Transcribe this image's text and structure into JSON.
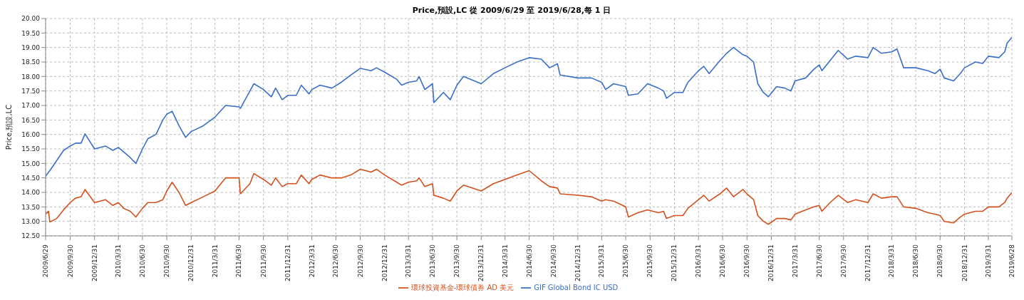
{
  "chart_data": {
    "type": "line",
    "title": "Price,預設,LC 從 2009/6/29 至 2019/6/28,每 1 日",
    "ylabel": "Price,預設,LC",
    "x": [
      "2009-06-29",
      "2009-07-10",
      "2009-07-15",
      "2009-08-10",
      "2009-09-05",
      "2009-09-30",
      "2009-10-20",
      "2009-11-10",
      "2009-11-25",
      "2009-12-31",
      "2010-02-10",
      "2010-03-10",
      "2010-03-31",
      "2010-04-20",
      "2010-05-15",
      "2010-06-05",
      "2010-06-30",
      "2010-07-20",
      "2010-08-20",
      "2010-09-15",
      "2010-09-30",
      "2010-10-20",
      "2010-11-15",
      "2010-12-10",
      "2010-12-31",
      "2011-02-15",
      "2011-03-31",
      "2011-05-10",
      "2011-06-30",
      "2011-07-05",
      "2011-08-10",
      "2011-08-25",
      "2011-09-30",
      "2011-10-30",
      "2011-11-15",
      "2011-12-10",
      "2011-12-31",
      "2012-02-01",
      "2012-02-20",
      "2012-03-20",
      "2012-03-31",
      "2012-05-01",
      "2012-06-15",
      "2012-07-20",
      "2012-08-25",
      "2012-09-30",
      "2012-11-10",
      "2012-11-30",
      "2012-12-31",
      "2013-02-15",
      "2013-03-05",
      "2013-03-31",
      "2013-05-01",
      "2013-05-10",
      "2013-06-01",
      "2013-06-30",
      "2013-07-05",
      "2013-08-10",
      "2013-09-05",
      "2013-09-30",
      "2013-10-25",
      "2013-12-31",
      "2014-02-15",
      "2014-03-31",
      "2014-05-15",
      "2014-06-30",
      "2014-08-15",
      "2014-09-15",
      "2014-10-15",
      "2014-10-25",
      "2014-12-31",
      "2015-02-20",
      "2015-03-31",
      "2015-04-15",
      "2015-05-15",
      "2015-06-30",
      "2015-07-10",
      "2015-08-15",
      "2015-09-20",
      "2015-10-31",
      "2015-11-20",
      "2015-12-01",
      "2015-12-31",
      "2016-02-01",
      "2016-02-20",
      "2016-03-31",
      "2016-04-20",
      "2016-05-10",
      "2016-06-20",
      "2016-07-15",
      "2016-08-10",
      "2016-09-15",
      "2016-09-30",
      "2016-10-25",
      "2016-11-10",
      "2016-12-01",
      "2016-12-20",
      "2017-01-20",
      "2017-02-20",
      "2017-03-15",
      "2017-03-31",
      "2017-05-10",
      "2017-06-10",
      "2017-06-30",
      "2017-07-10",
      "2017-08-10",
      "2017-09-10",
      "2017-10-15",
      "2017-11-15",
      "2017-12-31",
      "2018-01-20",
      "2018-02-20",
      "2018-03-31",
      "2018-04-20",
      "2018-05-15",
      "2018-06-30",
      "2018-08-15",
      "2018-09-10",
      "2018-09-30",
      "2018-10-15",
      "2018-11-20",
      "2018-12-15",
      "2018-12-31",
      "2019-02-10",
      "2019-03-10",
      "2019-03-31",
      "2019-05-10",
      "2019-06-01",
      "2019-06-10",
      "2019-06-28"
    ],
    "series": [
      {
        "name": "環球投資基金-環球債券 AD 美元",
        "color": "#d4501c",
        "values": [
          13.25,
          13.35,
          12.98,
          13.1,
          13.4,
          13.65,
          13.8,
          13.85,
          14.1,
          13.65,
          13.75,
          13.55,
          13.65,
          13.45,
          13.35,
          13.15,
          13.45,
          13.65,
          13.65,
          13.75,
          14.05,
          14.35,
          14.0,
          13.55,
          13.65,
          13.85,
          14.05,
          14.5,
          14.5,
          13.95,
          14.3,
          14.65,
          14.45,
          14.25,
          14.5,
          14.2,
          14.3,
          14.3,
          14.6,
          14.3,
          14.45,
          14.6,
          14.5,
          14.5,
          14.6,
          14.8,
          14.7,
          14.8,
          14.6,
          14.35,
          14.25,
          14.35,
          14.4,
          14.5,
          14.2,
          14.3,
          13.9,
          13.8,
          13.7,
          14.05,
          14.25,
          14.05,
          14.3,
          14.45,
          14.6,
          14.75,
          14.4,
          14.2,
          14.15,
          13.95,
          13.9,
          13.85,
          13.7,
          13.75,
          13.7,
          13.5,
          13.15,
          13.3,
          13.4,
          13.3,
          13.35,
          13.1,
          13.2,
          13.2,
          13.45,
          13.75,
          13.9,
          13.7,
          13.95,
          14.15,
          13.85,
          14.1,
          13.95,
          13.75,
          13.2,
          13.0,
          12.9,
          13.1,
          13.1,
          13.05,
          13.25,
          13.4,
          13.5,
          13.55,
          13.35,
          13.65,
          13.9,
          13.65,
          13.75,
          13.65,
          13.95,
          13.8,
          13.85,
          13.85,
          13.5,
          13.45,
          13.3,
          13.25,
          13.2,
          13.0,
          12.95,
          13.15,
          13.25,
          13.35,
          13.35,
          13.5,
          13.5,
          13.65,
          13.8,
          14.0
        ]
      },
      {
        "name": "GIF Global Bond IC USD",
        "color": "#3a6fc8",
        "values": [
          14.55,
          14.7,
          14.75,
          15.1,
          15.45,
          15.6,
          15.7,
          15.7,
          16.02,
          15.5,
          15.6,
          15.45,
          15.55,
          15.4,
          15.2,
          15.0,
          15.5,
          15.85,
          16.0,
          16.5,
          16.7,
          16.8,
          16.3,
          15.9,
          16.1,
          16.3,
          16.6,
          17.0,
          16.95,
          16.9,
          17.5,
          17.75,
          17.55,
          17.3,
          17.6,
          17.2,
          17.35,
          17.35,
          17.7,
          17.4,
          17.55,
          17.7,
          17.6,
          17.8,
          18.05,
          18.28,
          18.2,
          18.3,
          18.15,
          17.9,
          17.7,
          17.8,
          17.85,
          18.0,
          17.55,
          17.75,
          17.1,
          17.45,
          17.2,
          17.7,
          18.0,
          17.75,
          18.1,
          18.3,
          18.5,
          18.65,
          18.6,
          18.3,
          18.44,
          18.05,
          17.95,
          17.95,
          17.8,
          17.55,
          17.75,
          17.65,
          17.35,
          17.4,
          17.75,
          17.6,
          17.5,
          17.25,
          17.45,
          17.45,
          17.8,
          18.2,
          18.35,
          18.1,
          18.55,
          18.8,
          19.0,
          18.75,
          18.7,
          18.5,
          17.75,
          17.45,
          17.3,
          17.65,
          17.6,
          17.5,
          17.85,
          17.95,
          18.25,
          18.4,
          18.2,
          18.55,
          18.9,
          18.6,
          18.7,
          18.65,
          19.0,
          18.8,
          18.85,
          18.95,
          18.3,
          18.3,
          18.2,
          18.1,
          18.25,
          17.95,
          17.85,
          18.1,
          18.3,
          18.5,
          18.45,
          18.7,
          18.65,
          18.85,
          19.15,
          19.35
        ]
      }
    ],
    "xlim": [
      "2009-06-29",
      "2019-06-28"
    ],
    "xticks": [
      {
        "value": "2009-06-29",
        "label": "2009/6/29"
      },
      {
        "value": "2009-09-30",
        "label": "2009/9/30"
      },
      {
        "value": "2009-12-31",
        "label": "2009/12/31"
      },
      {
        "value": "2010-03-31",
        "label": "2010/3/31"
      },
      {
        "value": "2010-06-30",
        "label": "2010/6/30"
      },
      {
        "value": "2010-09-30",
        "label": "2010/9/30"
      },
      {
        "value": "2010-12-31",
        "label": "2010/12/31"
      },
      {
        "value": "2011-03-31",
        "label": "2011/3/31"
      },
      {
        "value": "2011-06-30",
        "label": "2011/6/30"
      },
      {
        "value": "2011-09-30",
        "label": "2011/9/30"
      },
      {
        "value": "2011-12-31",
        "label": "2011/12/31"
      },
      {
        "value": "2012-03-31",
        "label": "2012/3/31"
      },
      {
        "value": "2012-06-30",
        "label": "2012/6/30"
      },
      {
        "value": "2012-09-30",
        "label": "2012/9/30"
      },
      {
        "value": "2012-12-31",
        "label": "2012/12/31"
      },
      {
        "value": "2013-03-31",
        "label": "2013/3/31"
      },
      {
        "value": "2013-06-30",
        "label": "2013/6/30"
      },
      {
        "value": "2013-09-30",
        "label": "2013/9/30"
      },
      {
        "value": "2013-12-31",
        "label": "2013/12/31"
      },
      {
        "value": "2014-03-31",
        "label": "2014/3/31"
      },
      {
        "value": "2014-06-30",
        "label": "2014/6/30"
      },
      {
        "value": "2014-09-30",
        "label": "2014/9/30"
      },
      {
        "value": "2014-12-31",
        "label": "2014/12/31"
      },
      {
        "value": "2015-03-31",
        "label": "2015/3/31"
      },
      {
        "value": "2015-06-30",
        "label": "2015/6/30"
      },
      {
        "value": "2015-09-30",
        "label": "2015/9/30"
      },
      {
        "value": "2015-12-31",
        "label": "2015/12/31"
      },
      {
        "value": "2016-03-31",
        "label": "2016/3/31"
      },
      {
        "value": "2016-06-30",
        "label": "2016/6/30"
      },
      {
        "value": "2016-09-30",
        "label": "2016/9/30"
      },
      {
        "value": "2016-12-31",
        "label": "2016/12/31"
      },
      {
        "value": "2017-03-31",
        "label": "2017/3/31"
      },
      {
        "value": "2017-06-30",
        "label": "2017/6/30"
      },
      {
        "value": "2017-09-30",
        "label": "2017/9/30"
      },
      {
        "value": "2017-12-31",
        "label": "2017/12/31"
      },
      {
        "value": "2018-03-31",
        "label": "2018/3/31"
      },
      {
        "value": "2018-06-30",
        "label": "2018/6/30"
      },
      {
        "value": "2018-09-30",
        "label": "2018/9/30"
      },
      {
        "value": "2018-12-31",
        "label": "2018/12/31"
      },
      {
        "value": "2019-03-31",
        "label": "2019/3/31"
      },
      {
        "value": "2019-06-28",
        "label": "2019/6/28"
      }
    ],
    "ylim": [
      12.5,
      20
    ],
    "yticks": [
      {
        "value": 12.5,
        "label": "12.50"
      },
      {
        "value": 13,
        "label": "13.00"
      },
      {
        "value": 13.5,
        "label": "13.50"
      },
      {
        "value": 14,
        "label": "14.00"
      },
      {
        "value": 14.5,
        "label": "14.50"
      },
      {
        "value": 15,
        "label": "15.00"
      },
      {
        "value": 15.5,
        "label": "15.50"
      },
      {
        "value": 16,
        "label": "16.00"
      },
      {
        "value": 16.5,
        "label": "16.50"
      },
      {
        "value": 17,
        "label": "17.00"
      },
      {
        "value": 17.5,
        "label": "17.50"
      },
      {
        "value": 18,
        "label": "18.00"
      },
      {
        "value": 18.5,
        "label": "18.50"
      },
      {
        "value": 19,
        "label": "19.00"
      },
      {
        "value": 19.5,
        "label": "19.50"
      },
      {
        "value": 20,
        "label": "20.00"
      }
    ],
    "grid": true,
    "legend": "bottom",
    "marker": "none",
    "line_style": "solid"
  }
}
